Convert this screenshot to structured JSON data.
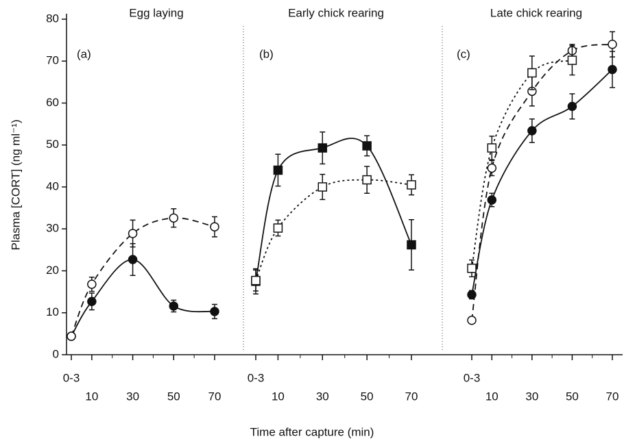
{
  "chart_data": {
    "type": "line",
    "ylabel": "Plasma [CORT] (ng ml⁻¹)",
    "xlabel": "Time after capture (min)",
    "ylim": [
      0,
      80
    ],
    "yticks": [
      0,
      10,
      20,
      30,
      40,
      50,
      60,
      70,
      80
    ],
    "xlim": [
      -2,
      84
    ],
    "xticks": [
      {
        "value": 0,
        "label": "0-3"
      },
      10,
      30,
      50,
      70
    ],
    "xminorticks": [
      20,
      40,
      60
    ],
    "color": "#111111",
    "panels": [
      {
        "title": "Egg laying",
        "label": "(a)",
        "series": [
          {
            "marker": "circle",
            "filled": true,
            "dash": "solid",
            "x": [
              0,
              10,
              30,
              50,
              70
            ],
            "values": [
              4.4,
              12.7,
              22.7,
              11.6,
              10.3
            ],
            "errors": [
              0.5,
              2,
              3.8,
              1.4,
              1.7
            ]
          },
          {
            "marker": "circle",
            "filled": false,
            "dash": "dashed",
            "x": [
              0,
              10,
              30,
              50,
              70
            ],
            "values": [
              4.4,
              16.8,
              28.9,
              32.6,
              30.5
            ],
            "errors": [
              0.5,
              1.7,
              3.2,
              2.2,
              2.4
            ]
          }
        ]
      },
      {
        "title": "Early chick rearing",
        "label": "(b)",
        "series": [
          {
            "marker": "square",
            "filled": true,
            "dash": "solid",
            "x": [
              0,
              10,
              30,
              50,
              70
            ],
            "values": [
              17.5,
              44,
              49.3,
              49.8,
              26.2
            ],
            "errors": [
              3,
              3.8,
              3.8,
              2.4,
              6
            ]
          },
          {
            "marker": "square",
            "filled": false,
            "dash": "dotted",
            "x": [
              0,
              10,
              30,
              50,
              70
            ],
            "values": [
              17.7,
              30.2,
              40,
              41.7,
              40.5
            ],
            "errors": [
              2.5,
              1.9,
              3,
              3.2,
              2.4
            ]
          }
        ]
      },
      {
        "title": "Late chick rearing",
        "label": "(c)",
        "series": [
          {
            "marker": "circle",
            "filled": true,
            "dash": "solid",
            "x": [
              0,
              10,
              30,
              50,
              70
            ],
            "values": [
              14.3,
              36.9,
              53.4,
              59.2,
              68
            ],
            "errors": [
              1,
              1.6,
              2.8,
              3,
              4.3
            ]
          },
          {
            "marker": "circle",
            "filled": false,
            "dash": "dashed",
            "x": [
              0,
              10,
              30,
              50,
              70
            ],
            "values": [
              8.2,
              44.5,
              62.8,
              72.5,
              74
            ],
            "errors": [
              0.5,
              1.8,
              3.5,
              1.5,
              3
            ]
          },
          {
            "marker": "square",
            "filled": false,
            "dash": "dotted",
            "x": [
              0,
              10,
              30,
              50
            ],
            "values": [
              20.6,
              49.3,
              67.2,
              70.2
            ],
            "errors": [
              2,
              2.8,
              4,
              3.5
            ]
          }
        ]
      }
    ]
  }
}
